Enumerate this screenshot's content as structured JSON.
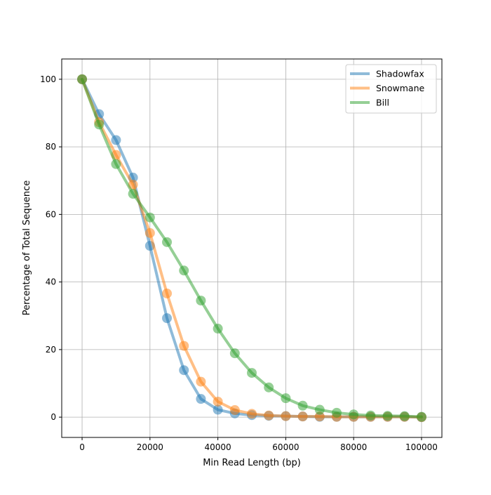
{
  "chart_data": {
    "type": "line",
    "title": "",
    "xlabel": "Min Read Length (bp)",
    "ylabel": "Percentage of Total Sequence",
    "xlim": [
      -6000,
      106000
    ],
    "ylim": [
      -6,
      106
    ],
    "x_ticks": [
      0,
      20000,
      40000,
      60000,
      80000,
      100000
    ],
    "y_ticks": [
      0,
      20,
      40,
      60,
      80,
      100
    ],
    "grid": true,
    "legend_position": "top-right",
    "x": [
      0,
      5000,
      10000,
      15000,
      20000,
      25000,
      30000,
      35000,
      40000,
      45000,
      50000,
      55000,
      60000,
      65000,
      70000,
      75000,
      80000,
      85000,
      90000,
      95000,
      100000
    ],
    "series": [
      {
        "name": "Shadowfax",
        "color": "#1f77b4",
        "values": [
          100,
          89.7,
          82.0,
          70.9,
          50.7,
          29.3,
          13.9,
          5.4,
          2.2,
          1.1,
          0.6,
          0.4,
          0.3,
          0.2,
          0.1,
          0.1,
          0.1,
          0.1,
          0.1,
          0.1,
          0.0
        ]
      },
      {
        "name": "Snowmane",
        "color": "#ff7f0e",
        "values": [
          100,
          87.3,
          77.6,
          68.8,
          54.5,
          36.6,
          21.1,
          10.5,
          4.6,
          2.1,
          1.0,
          0.5,
          0.3,
          0.2,
          0.2,
          0.1,
          0.1,
          0.1,
          0.1,
          0.1,
          0.0
        ]
      },
      {
        "name": "Bill",
        "color": "#2ca02c",
        "values": [
          100,
          86.6,
          74.9,
          66.1,
          59.1,
          51.8,
          43.4,
          34.5,
          26.2,
          18.9,
          13.1,
          8.8,
          5.6,
          3.4,
          2.2,
          1.3,
          0.8,
          0.5,
          0.4,
          0.3,
          0.1
        ]
      }
    ]
  }
}
